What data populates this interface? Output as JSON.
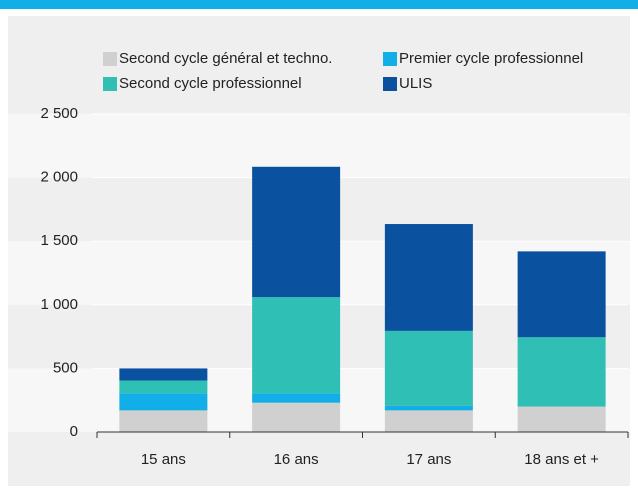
{
  "chart_data": {
    "type": "stacked_bar",
    "categories": [
      "15 ans",
      "16 ans",
      "17 ans",
      "18 ans et +"
    ],
    "series": [
      {
        "name": "Second cycle général et techno.",
        "color": "#d0d0d0",
        "values": [
          170,
          230,
          170,
          200
        ]
      },
      {
        "name": "Premier cycle professionnel",
        "color": "#12aee8",
        "values": [
          135,
          75,
          35,
          0
        ]
      },
      {
        "name": "Second cycle professionnel",
        "color": "#30bfb5",
        "values": [
          100,
          755,
          590,
          545
        ]
      },
      {
        "name": "ULIS",
        "color": "#0a52a0",
        "values": [
          95,
          1025,
          840,
          675
        ]
      }
    ],
    "ylim": [
      0,
      2500
    ],
    "yticks": [
      0,
      500,
      {
        "value": 1000,
        "label": "1 000"
      },
      {
        "value": 1500,
        "label": "1 500"
      },
      {
        "value": 2000,
        "label": "2 000"
      },
      {
        "value": 2500,
        "label": "2 500"
      }
    ],
    "grid": true
  }
}
